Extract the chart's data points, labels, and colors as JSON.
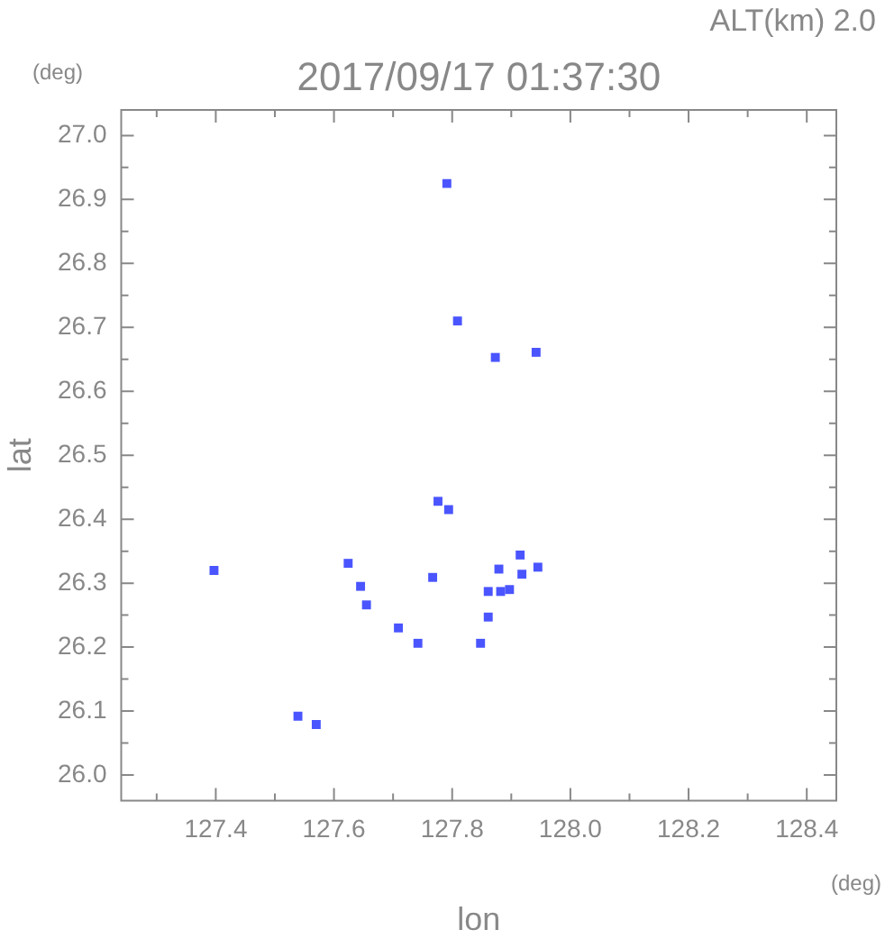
{
  "chart_data": {
    "type": "scatter",
    "title": "2017/09/17 01:37:30",
    "subtitle": "ALT(km) 2.0",
    "xlabel": "lon",
    "ylabel": "lat",
    "annotations": [
      "(deg)",
      "(deg)"
    ],
    "x": [
      127.791,
      127.809,
      127.873,
      127.942,
      127.776,
      127.794,
      127.624,
      127.645,
      127.655,
      127.767,
      127.709,
      127.742,
      127.861,
      127.848,
      127.861,
      127.882,
      127.879,
      127.897,
      127.918,
      127.915,
      127.945,
      127.397,
      127.539,
      127.57
    ],
    "series": [
      {
        "color": "#4a55ff",
        "values": [
          26.925,
          26.71,
          26.653,
          26.661,
          26.428,
          26.415,
          26.331,
          26.295,
          26.266,
          26.309,
          26.23,
          26.206,
          26.247,
          26.206,
          26.287,
          26.287,
          26.322,
          26.29,
          26.314,
          26.344,
          26.325,
          26.32,
          26.092,
          26.079
        ]
      }
    ],
    "marker": "square",
    "xlim": [
      127.24,
      128.45
    ],
    "ylim": [
      25.96,
      27.04
    ],
    "xticks": [
      {
        "value": 127.3,
        "label": null
      },
      127.4,
      {
        "value": 127.5,
        "label": null
      },
      127.6,
      {
        "value": 127.7,
        "label": null
      },
      127.8,
      {
        "value": 127.9,
        "label": null
      },
      {
        "value": 128.0,
        "label": "128.0"
      },
      {
        "value": 128.1,
        "label": null
      },
      128.2,
      {
        "value": 128.3,
        "label": null
      },
      128.4
    ],
    "yticks": [
      {
        "value": 26.0,
        "label": "26.0"
      },
      {
        "value": 26.05,
        "label": null
      },
      26.1,
      {
        "value": 26.15,
        "label": null
      },
      26.2,
      {
        "value": 26.25,
        "label": null
      },
      26.3,
      {
        "value": 26.35,
        "label": null
      },
      26.4,
      {
        "value": 26.45,
        "label": null
      },
      26.5,
      {
        "value": 26.55,
        "label": null
      },
      26.6,
      {
        "value": 26.65,
        "label": null
      },
      26.7,
      {
        "value": 26.75,
        "label": null
      },
      26.8,
      {
        "value": 26.85,
        "label": null
      },
      26.9,
      {
        "value": 26.95,
        "label": null
      },
      {
        "value": 27.0,
        "label": "27.0"
      }
    ],
    "grid": false,
    "legend": false
  }
}
